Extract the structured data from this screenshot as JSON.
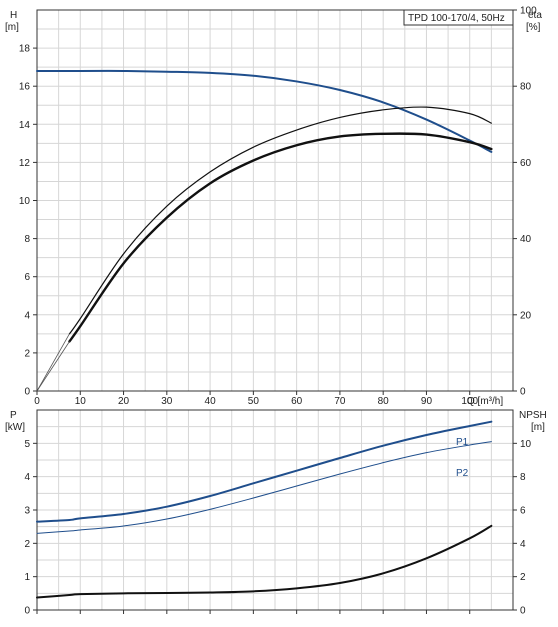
{
  "chart_data": [
    {
      "type": "line",
      "title": "TPD 100-170/4, 50Hz",
      "ylabel_left": "H",
      "ylabel_left_unit": "[m]",
      "ylabel_right": "eta",
      "ylabel_right_unit": "[%]",
      "xlabel": "Q [m³/h]",
      "xlim": [
        0,
        110
      ],
      "ylim_left": [
        0,
        20
      ],
      "ylim_right": [
        0,
        100
      ],
      "x_ticks": [
        "0",
        "10",
        "20",
        "30",
        "40",
        "50",
        "60",
        "70",
        "80",
        "90",
        "100"
      ],
      "y_ticks_left": [
        "0",
        "2",
        "4",
        "6",
        "8",
        "10",
        "12",
        "14",
        "16",
        "18"
      ],
      "y_ticks_right": [
        "0",
        "20",
        "40",
        "60",
        "80",
        "100"
      ],
      "grid": true,
      "series": [
        {
          "axis": "left",
          "color": "#1f4e8c",
          "width": 2,
          "x": [
            0,
            5,
            10,
            20,
            30,
            40,
            50,
            60,
            70,
            80,
            90,
            100,
            105
          ],
          "y": [
            16.8,
            16.8,
            16.8,
            16.8,
            16.76,
            16.7,
            16.55,
            16.25,
            15.8,
            15.15,
            14.25,
            13.15,
            12.55
          ]
        },
        {
          "axis": "right",
          "color": "#111111",
          "width": 1.2,
          "x": [
            7.5,
            10,
            20,
            30,
            40,
            50,
            60,
            70,
            80,
            90,
            100,
            105
          ],
          "y": [
            15,
            19,
            36,
            48.5,
            57.5,
            64,
            68.5,
            71.8,
            73.8,
            74.5,
            72.8,
            70.3
          ]
        },
        {
          "axis": "right",
          "color": "#111111",
          "width": 2.4,
          "x": [
            7.5,
            10,
            20,
            30,
            40,
            50,
            60,
            70,
            80,
            90,
            100,
            105
          ],
          "y": [
            13,
            17,
            33.5,
            45.5,
            54.5,
            60.5,
            64.5,
            66.8,
            67.5,
            67.3,
            65.3,
            63.5
          ]
        }
      ]
    },
    {
      "type": "line",
      "ylabel_left": "P",
      "ylabel_left_unit": "[kW]",
      "ylabel_right": "NPSH",
      "ylabel_right_unit": "[m]",
      "xlim": [
        0,
        110
      ],
      "ylim_left": [
        0,
        6
      ],
      "ylim_right": [
        0,
        12
      ],
      "y_ticks_left": [
        "0",
        "1",
        "2",
        "3",
        "4",
        "5"
      ],
      "y_ticks_right": [
        "0",
        "2",
        "4",
        "6",
        "8",
        "10"
      ],
      "grid": true,
      "series": [
        {
          "name": "P1",
          "axis": "left",
          "color": "#1f4e8c",
          "width": 2,
          "x": [
            0,
            7.5,
            10,
            20,
            30,
            40,
            50,
            60,
            70,
            80,
            90,
            100,
            105
          ],
          "y": [
            2.65,
            2.7,
            2.75,
            2.88,
            3.1,
            3.42,
            3.8,
            4.18,
            4.56,
            4.93,
            5.25,
            5.52,
            5.65
          ]
        },
        {
          "name": "P2",
          "axis": "left",
          "color": "#1f4e8c",
          "width": 1,
          "x": [
            0,
            7.5,
            10,
            20,
            30,
            40,
            50,
            60,
            70,
            80,
            90,
            100,
            105
          ],
          "y": [
            2.3,
            2.37,
            2.4,
            2.52,
            2.73,
            3.02,
            3.36,
            3.72,
            4.08,
            4.42,
            4.72,
            4.95,
            5.05
          ]
        },
        {
          "axis": "right",
          "color": "#111111",
          "width": 2,
          "x": [
            0,
            7.5,
            10,
            20,
            30,
            40,
            50,
            60,
            70,
            80,
            90,
            100,
            105
          ],
          "y": [
            0.75,
            0.9,
            0.95,
            1.0,
            1.02,
            1.05,
            1.12,
            1.3,
            1.62,
            2.2,
            3.1,
            4.3,
            5.05
          ]
        }
      ]
    }
  ]
}
